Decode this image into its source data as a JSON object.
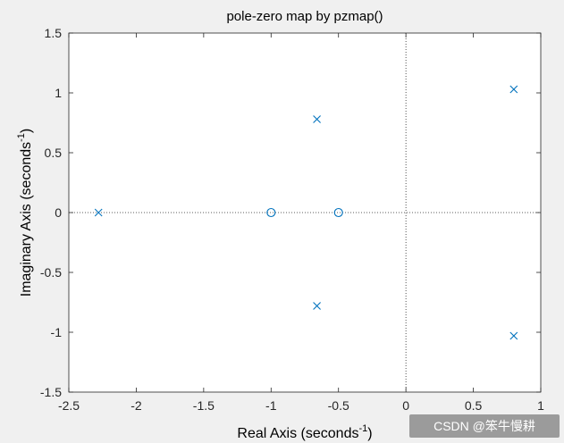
{
  "chart_data": {
    "type": "scatter",
    "title": "pole-zero map by pzmap()",
    "xlabel": "Real Axis (seconds",
    "xlabel_sup": "-1",
    "xlabel_end": ")",
    "ylabel": "Imaginary Axis (seconds",
    "ylabel_sup": "-1",
    "ylabel_end": ")",
    "xlim": [
      -2.5,
      1
    ],
    "ylim": [
      -1.5,
      1.5
    ],
    "xticks": [
      -2.5,
      -2,
      -1.5,
      -1,
      -0.5,
      0,
      0.5,
      1
    ],
    "xtick_labels": [
      "-2.5",
      "-2",
      "-1.5",
      "-1",
      "-0.5",
      "0",
      "0.5",
      "1"
    ],
    "yticks": [
      -1.5,
      -1,
      -0.5,
      0,
      0.5,
      1,
      1.5
    ],
    "ytick_labels": [
      "-1.5",
      "-1",
      "-0.5",
      "0",
      "0.5",
      "1",
      "1.5"
    ],
    "grid": false,
    "reference_lines": [
      "x=0 dotted",
      "y=0 dotted"
    ],
    "marker_color": "#0072bd",
    "series": [
      {
        "marker": "x",
        "points": [
          {
            "x": -2.28,
            "y": 0
          },
          {
            "x": -0.66,
            "y": 0.78
          },
          {
            "x": -0.66,
            "y": -0.78
          },
          {
            "x": 0.8,
            "y": 1.03
          },
          {
            "x": 0.8,
            "y": -1.03
          }
        ]
      },
      {
        "marker": "o",
        "points": [
          {
            "x": -1,
            "y": 0
          },
          {
            "x": -0.5,
            "y": 0
          }
        ]
      }
    ]
  },
  "watermark": "CSDN @笨牛慢耕"
}
